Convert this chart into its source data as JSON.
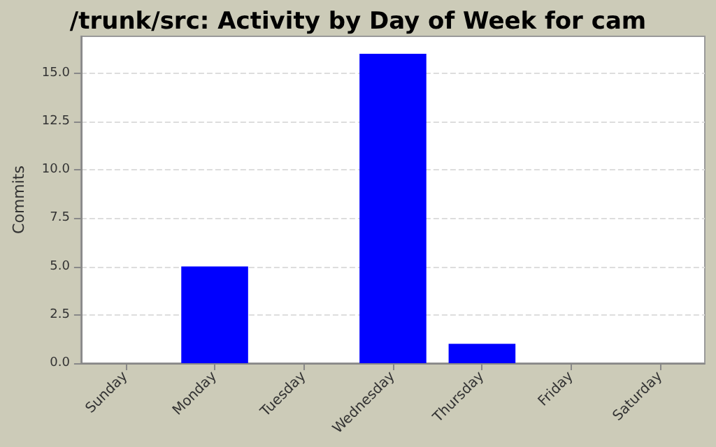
{
  "chart_data": {
    "type": "bar",
    "title": "/trunk/src: Activity by Day of Week for cam",
    "ylabel": "Commits",
    "categories": [
      "Sunday",
      "Monday",
      "Tuesday",
      "Wednesday",
      "Thursday",
      "Friday",
      "Saturday"
    ],
    "values": [
      0,
      5,
      0,
      16,
      1,
      0,
      0
    ],
    "color": "#0000ff",
    "ylim": [
      0,
      16.9
    ],
    "yticks": [
      {
        "value": 0,
        "label": "0.0"
      },
      {
        "value": 2.5,
        "label": "2.5"
      },
      {
        "value": 5,
        "label": "5.0"
      },
      {
        "value": 7.5,
        "label": "7.5"
      },
      {
        "value": 10,
        "label": "10.0"
      },
      {
        "value": 12.5,
        "label": "12.5"
      },
      {
        "value": 15,
        "label": "15.0"
      }
    ],
    "grid": "y"
  }
}
